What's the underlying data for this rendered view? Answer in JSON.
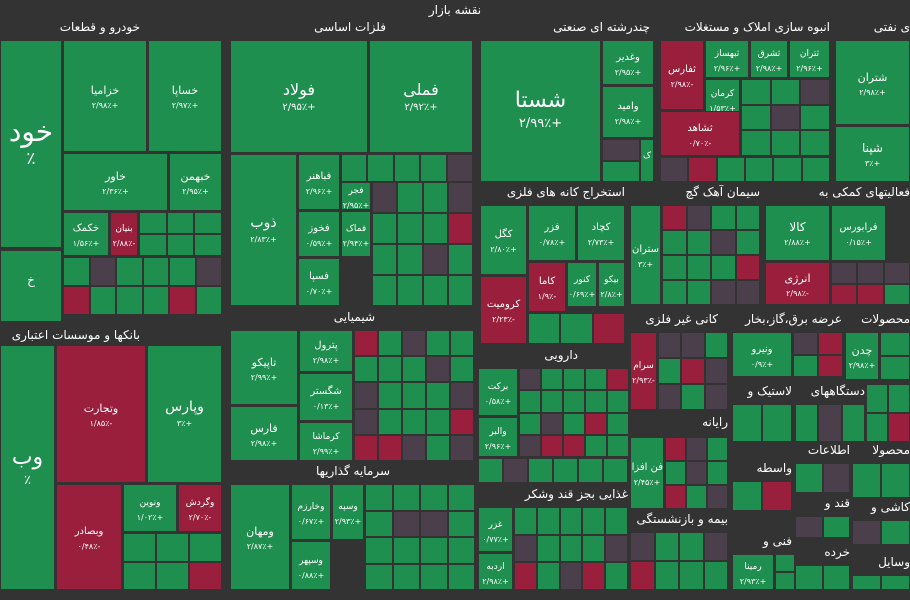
{
  "title": "نقشه بازار",
  "colors": {
    "up": "#1f8f4f",
    "down": "#9a1f3c",
    "flat": "#4a3f4a",
    "bg": "#333333"
  },
  "chart_data": {
    "type": "heatmap",
    "sectors": [
      {
        "name": "خودرو و قطعات",
        "tiles": [
          {
            "name": "خود",
            "change": "٪"
          },
          {
            "name": "خزامیا",
            "change": "+۲/۹۸٪"
          },
          {
            "name": "خساپا",
            "change": "+۲/۹۷٪"
          },
          {
            "name": "خاور",
            "change": "+۲/۳۶٪"
          },
          {
            "name": "خبهمن",
            "change": "+۲/۹۵٪"
          },
          {
            "name": "خکمک",
            "change": "+۱/۵۶٪"
          },
          {
            "name": "بنیان",
            "change": "-۲/۸۸٪"
          },
          {
            "name": "خ",
            "change": ""
          }
        ]
      },
      {
        "name": "فلزات اساسی",
        "tiles": [
          {
            "name": "فولاد",
            "change": "+۲/۹۵٪"
          },
          {
            "name": "فملی",
            "change": "+۲/۹۲٪"
          },
          {
            "name": "فباهنر",
            "change": "+۲/۹۶٪"
          },
          {
            "name": "فجر",
            "change": "+۲/۹۵٪"
          },
          {
            "name": "ذوب",
            "change": "+۲/۸۳٪"
          },
          {
            "name": "فخوز",
            "change": "+۰/۵۹٪"
          },
          {
            "name": "فماک",
            "change": "+۲/۹۴٪"
          },
          {
            "name": "فسپا",
            "change": "+۰/۷۰٪"
          }
        ]
      },
      {
        "name": "چندرشته ای صنعتی",
        "tiles": [
          {
            "name": "شستا",
            "change": "+۲/۹۹٪"
          },
          {
            "name": "وغدیر",
            "change": "+۲/۹۵٪"
          },
          {
            "name": "وامید",
            "change": "+۲/۹۸٪"
          },
          {
            "name": "ک",
            "change": ""
          }
        ]
      },
      {
        "name": "انبوه سازی املاک و مستغلات",
        "tiles": [
          {
            "name": "ثفارس",
            "change": "-۲/۹۸٪"
          },
          {
            "name": "ثبهساز",
            "change": "+۲/۹۶٪"
          },
          {
            "name": "ثشرق",
            "change": "+۲/۹۸٪"
          },
          {
            "name": "ثتران",
            "change": "+۲/۹۶٪"
          },
          {
            "name": "کرمان",
            "change": "+۱/۵۳٪"
          },
          {
            "name": "ثشاهد",
            "change": "-۰/۷۰٪"
          }
        ]
      },
      {
        "name": "ی نفتی",
        "tiles": [
          {
            "name": "شتران",
            "change": "+۲/۹۸٪"
          },
          {
            "name": "شپنا",
            "change": "+۳٪"
          }
        ]
      },
      {
        "name": "استخراج کانه های فلزی",
        "tiles": [
          {
            "name": "کگل",
            "change": "+۲/۸۰٪"
          },
          {
            "name": "فزر",
            "change": "+۰/۷۸٪"
          },
          {
            "name": "کچاد",
            "change": "+۲/۷۳٪"
          },
          {
            "name": "کاما",
            "change": "-۱/۹٪"
          },
          {
            "name": "کنور",
            "change": "+۰/۶۹٪"
          },
          {
            "name": "کرومیت",
            "change": "-۲/۲۳٪"
          },
          {
            "name": "بیکو",
            "change": "+۲/۸٪"
          }
        ]
      },
      {
        "name": "سیمان آهک گچ",
        "tiles": [
          {
            "name": "ستران",
            "change": "+۳٪"
          }
        ]
      },
      {
        "name": "فعالیتهای کمکی به",
        "tiles": [
          {
            "name": "کالا",
            "change": "+۲/۸۸٪"
          },
          {
            "name": "انرژی",
            "change": "-۲/۹۸٪"
          },
          {
            "name": "فرابورس",
            "change": "+۰/۱۵٪"
          }
        ]
      },
      {
        "name": "بانکها و موسسات اعتباری",
        "tiles": [
          {
            "name": "وب",
            "change": "٪"
          },
          {
            "name": "وتجارت",
            "change": "-۱/۸۵٪"
          },
          {
            "name": "وپارس",
            "change": "+۳٪"
          },
          {
            "name": "ونوین",
            "change": "+۱/۰۲٪"
          },
          {
            "name": "وگردش",
            "change": "-۲/۷۰٪"
          },
          {
            "name": "وبصادر",
            "change": "-۰/۴۸٪"
          }
        ]
      },
      {
        "name": "شیمیایی",
        "tiles": [
          {
            "name": "تاپیکو",
            "change": "+۲/۹۹٪"
          },
          {
            "name": "پترول",
            "change": "+۲/۹۸٪"
          },
          {
            "name": "شگستر",
            "change": "+۰/۱۳٪"
          },
          {
            "name": "فارس",
            "change": "+۲/۹۸٪"
          },
          {
            "name": "کرماشا",
            "change": "+۲/۹۹٪"
          }
        ]
      },
      {
        "name": "سرمایه گذاریها",
        "tiles": [
          {
            "name": "ومهان",
            "change": "+۲/۸۷٪"
          },
          {
            "name": "وخارزم",
            "change": "+۰/۶۷٪"
          },
          {
            "name": "وسپه",
            "change": "+۲/۹۳٪"
          },
          {
            "name": "وسپهر",
            "change": "+۰/۸۸٪"
          }
        ]
      },
      {
        "name": "دارویی",
        "tiles": [
          {
            "name": "برکت",
            "change": "+۰/۵۸٪"
          },
          {
            "name": "والبر",
            "change": "+۲/۹۶٪"
          }
        ]
      },
      {
        "name": "غذایی بجز قند وشکر",
        "tiles": [
          {
            "name": "غزر",
            "change": "+۰/۷۷٪"
          },
          {
            "name": "اردبه",
            "change": "+۲/۹۸٪"
          }
        ]
      },
      {
        "name": "کانی غیر فلزی",
        "tiles": [
          {
            "name": "سرام",
            "change": "-۲/۹۳٪"
          }
        ]
      },
      {
        "name": "رایانه",
        "tiles": [
          {
            "name": "فن افزار",
            "change": "+۲/۴۵٪"
          }
        ]
      },
      {
        "name": "بیمه و بازنشستگی",
        "tiles": []
      },
      {
        "name": "عرضه برق،گاز،بخار",
        "tiles": [
          {
            "name": "ونیرو",
            "change": "+۰/۹٪"
          }
        ]
      },
      {
        "name": "محصولات",
        "tiles": [
          {
            "name": "چدن",
            "change": "+۲/۹۸٪"
          }
        ]
      },
      {
        "name": "لاستیک و",
        "tiles": []
      },
      {
        "name": "دستگاههای",
        "tiles": []
      },
      {
        "name": "واسطه",
        "tiles": []
      },
      {
        "name": "اطلاعات",
        "tiles": []
      },
      {
        "name": "فنی و",
        "tiles": [
          {
            "name": "رمینا",
            "change": "+۲/۹۳٪"
          }
        ]
      },
      {
        "name": "قند و",
        "tiles": []
      },
      {
        "name": "کاشی و",
        "tiles": []
      },
      {
        "name": "خرده",
        "tiles": []
      },
      {
        "name": "وسایل",
        "tiles": []
      },
      {
        "name": "محصولا",
        "tiles": []
      }
    ]
  }
}
